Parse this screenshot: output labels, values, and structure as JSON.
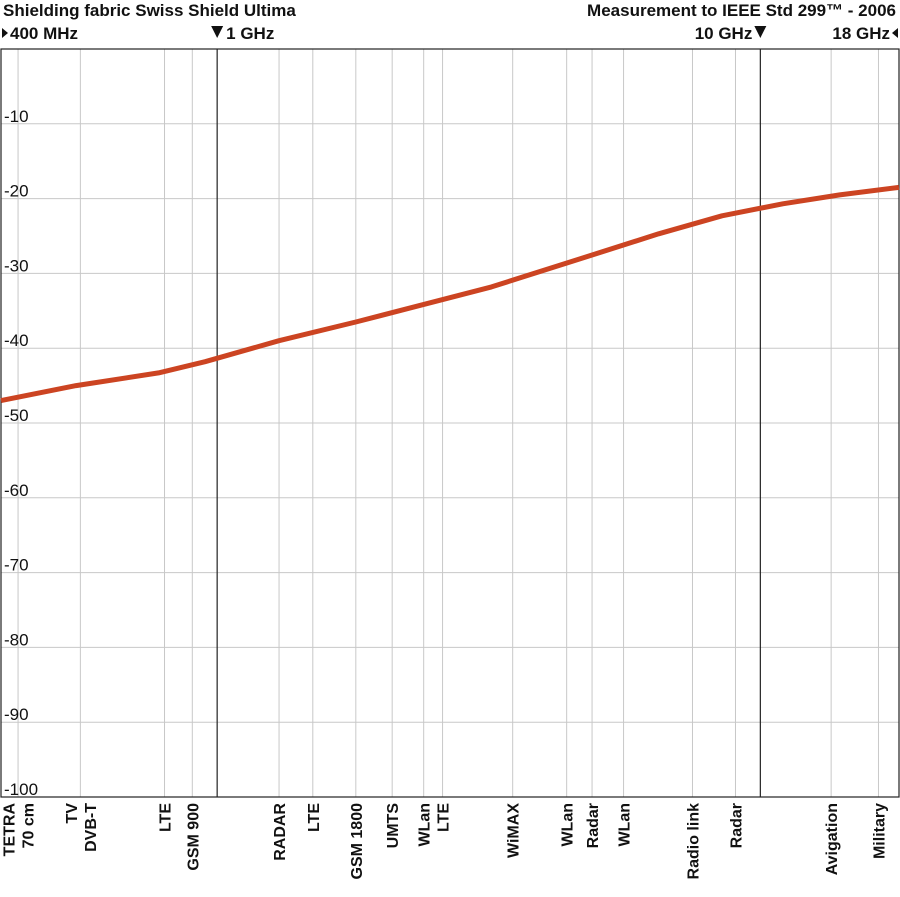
{
  "chart_data": {
    "type": "line",
    "title": "Shielding fabric Swiss Shield Ultima",
    "subtitle": "Measurement to IEEE Std 299™ - 2006",
    "xlabel": "",
    "ylabel": "",
    "x_scale": "log",
    "x_unit": "GHz",
    "xlim": [
      0.4,
      18
    ],
    "ylim": [
      -100,
      0
    ],
    "grid": true,
    "frequency_markers": [
      {
        "label": "400 MHz",
        "x": 0.4,
        "arrow": "right"
      },
      {
        "label": "1 GHz",
        "x": 1,
        "arrow": "down"
      },
      {
        "label": "10 GHz",
        "x": 10,
        "arrow": "down"
      },
      {
        "label": "18 GHz",
        "x": 18,
        "arrow": "left"
      }
    ],
    "y_ticks": [
      {
        "label": "-10",
        "value": -10
      },
      {
        "label": "-20",
        "value": -20
      },
      {
        "label": "-30",
        "value": -30
      },
      {
        "label": "-40",
        "value": -40
      },
      {
        "label": "-50",
        "value": -50
      },
      {
        "label": "-60",
        "value": -60
      },
      {
        "label": "-70",
        "value": -70
      },
      {
        "label": "-80",
        "value": -80
      },
      {
        "label": "-90",
        "value": -90
      },
      {
        "label": "-100",
        "value": -100
      }
    ],
    "band_labels": [
      {
        "lines": [
          "TETRA",
          "70 cm"
        ],
        "x": 0.43
      },
      {
        "lines": [
          "TV",
          "DVB-T"
        ],
        "x": 0.56
      },
      {
        "lines": [
          "LTE"
        ],
        "x": 0.8
      },
      {
        "lines": [
          "GSM 900"
        ],
        "x": 0.9
      },
      {
        "lines": [
          "RADAR"
        ],
        "x": 1.3
      },
      {
        "lines": [
          "LTE"
        ],
        "x": 1.5
      },
      {
        "lines": [
          "GSM 1800"
        ],
        "x": 1.8
      },
      {
        "lines": [
          "UMTS"
        ],
        "x": 2.1
      },
      {
        "lines": [
          "WLan"
        ],
        "x": 2.4
      },
      {
        "lines": [
          "LTE"
        ],
        "x": 2.6
      },
      {
        "lines": [
          "WiMAX"
        ],
        "x": 3.5
      },
      {
        "lines": [
          "WLan"
        ],
        "x": 4.4
      },
      {
        "lines": [
          "Radar"
        ],
        "x": 4.9
      },
      {
        "lines": [
          "WLan"
        ],
        "x": 5.6
      },
      {
        "lines": [
          "Radio link"
        ],
        "x": 7.5
      },
      {
        "lines": [
          "Radar"
        ],
        "x": 9.0
      },
      {
        "lines": [
          "Avigation"
        ],
        "x": 13.5
      },
      {
        "lines": [
          "Military"
        ],
        "x": 16.5
      }
    ],
    "series": [
      {
        "color": "#cc4422",
        "x": [
          0.4,
          0.55,
          0.78,
          0.95,
          1.3,
          1.8,
          2.3,
          3.2,
          4.5,
          6.5,
          8.5,
          11,
          14,
          18
        ],
        "y": [
          -47,
          -45,
          -43.3,
          -41.8,
          -39,
          -36.5,
          -34.5,
          -31.8,
          -28.4,
          -24.7,
          -22.3,
          -20.7,
          -19.5,
          -18.5
        ]
      }
    ]
  }
}
